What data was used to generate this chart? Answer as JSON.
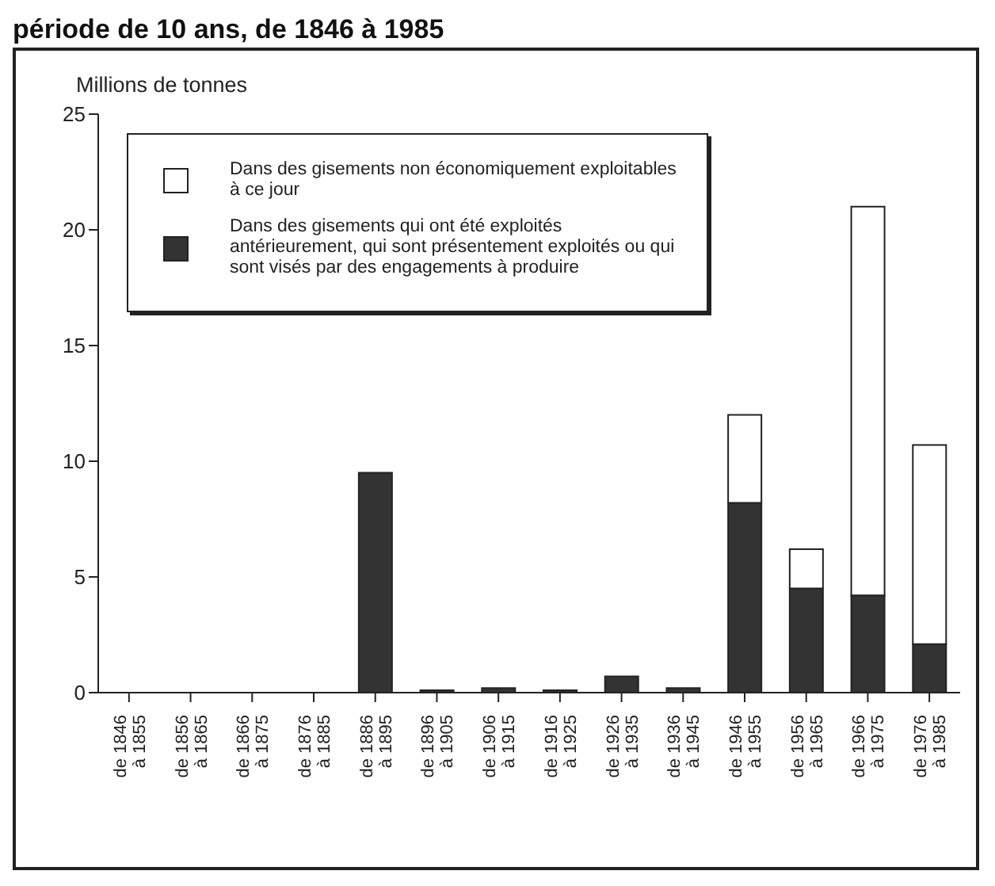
{
  "chart_data": {
    "type": "bar",
    "title": "période de 10 ans, de 1846 à 1985",
    "ylabel": "Millions de tonnes",
    "categories": [
      "de 1846\nà 1855",
      "de 1856\nà 1865",
      "de 1866\nà 1875",
      "de 1876\nà 1885",
      "de 1886\nà 1895",
      "de 1896\nà 1905",
      "de 1906\nà 1915",
      "de 1916\nà 1925",
      "de 1926\nà 1935",
      "de 1936\nà 1945",
      "de 1946\nà 1955",
      "de 1956\nà 1965",
      "de 1966\nà 1975",
      "de 1976\nà 1985"
    ],
    "stacked": true,
    "series": [
      {
        "name": "Dans des gisements qui ont été exploités antérieurement, qui sont présentement exploités ou qui sont visés par des engagements à produire",
        "color": "#333333",
        "values": [
          0,
          0,
          0,
          0,
          9.5,
          0.1,
          0.2,
          0.1,
          0.7,
          0.2,
          8.2,
          4.5,
          4.2,
          2.1
        ]
      },
      {
        "name": "Dans des gisements non économiquement exploitables à ce jour",
        "color": "#ffffff",
        "values": [
          0,
          0,
          0,
          0,
          0,
          0,
          0,
          0,
          0,
          0,
          3.8,
          1.7,
          16.8,
          8.6
        ]
      }
    ],
    "ylim": [
      0,
      25
    ],
    "yticks": [
      0,
      5,
      10,
      15,
      20,
      25
    ],
    "grid": false,
    "legend": "top left"
  }
}
